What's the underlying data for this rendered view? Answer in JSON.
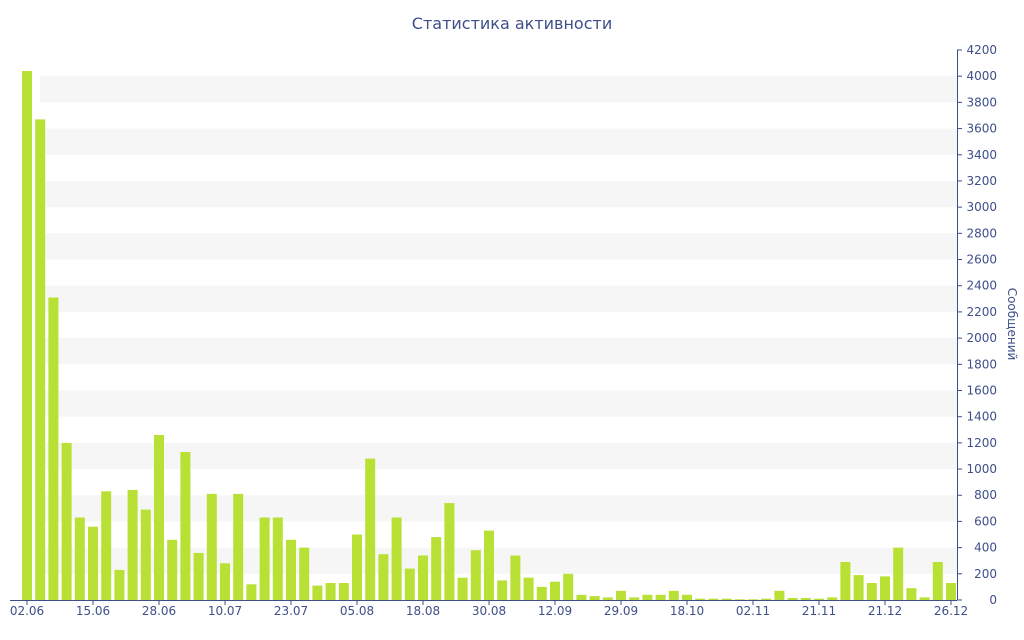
{
  "chart_data": {
    "type": "bar",
    "title": "Статистика активности",
    "xlabel": "",
    "ylabel": "Сообщений",
    "ylim": [
      0,
      4200
    ],
    "y_ticks": [
      0,
      200,
      400,
      600,
      800,
      1000,
      1200,
      1400,
      1600,
      1800,
      2000,
      2200,
      2400,
      2600,
      2800,
      3000,
      3200,
      3400,
      3600,
      3800,
      4000,
      4200
    ],
    "x_tick_labels": [
      {
        "label": "02.06",
        "index": 0
      },
      {
        "label": "15.06",
        "index": 5
      },
      {
        "label": "28.06",
        "index": 10
      },
      {
        "label": "10.07",
        "index": 15
      },
      {
        "label": "23.07",
        "index": 20
      },
      {
        "label": "05.08",
        "index": 25
      },
      {
        "label": "18.08",
        "index": 30
      },
      {
        "label": "30.08",
        "index": 35
      },
      {
        "label": "12.09",
        "index": 40
      },
      {
        "label": "29.09",
        "index": 45
      },
      {
        "label": "18.10",
        "index": 50
      },
      {
        "label": "02.11",
        "index": 55
      },
      {
        "label": "21.11",
        "index": 60
      },
      {
        "label": "21.12",
        "index": 65
      },
      {
        "label": "26.12",
        "index": 70
      }
    ],
    "values": [
      4040,
      3670,
      2310,
      1200,
      630,
      560,
      830,
      230,
      840,
      690,
      1260,
      460,
      1130,
      360,
      810,
      280,
      810,
      120,
      630,
      630,
      460,
      400,
      110,
      130,
      130,
      500,
      1080,
      350,
      630,
      240,
      340,
      480,
      740,
      170,
      380,
      530,
      150,
      340,
      170,
      100,
      140,
      200,
      40,
      30,
      20,
      70,
      20,
      40,
      40,
      70,
      40,
      10,
      10,
      10,
      5,
      5,
      10,
      70,
      15,
      15,
      10,
      20,
      290,
      190,
      130,
      180,
      400,
      90,
      20,
      290,
      130
    ],
    "grid": true,
    "colors": {
      "bar": "#b9e034",
      "band": "#f6f6f6",
      "axis": "#3e4f8a",
      "text": "#3e4f8a"
    }
  }
}
